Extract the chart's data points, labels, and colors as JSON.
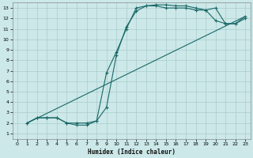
{
  "xlabel": "Humidex (Indice chaleur)",
  "bg_color": "#cce8e8",
  "grid_color": "#aacccc",
  "line_color": "#1a6868",
  "xlim": [
    -0.5,
    23.5
  ],
  "ylim": [
    0.5,
    13.5
  ],
  "xticks": [
    0,
    1,
    2,
    3,
    4,
    5,
    6,
    7,
    8,
    9,
    10,
    11,
    12,
    13,
    14,
    15,
    16,
    17,
    18,
    19,
    20,
    21,
    22,
    23
  ],
  "yticks": [
    1,
    2,
    3,
    4,
    5,
    6,
    7,
    8,
    9,
    10,
    11,
    12,
    13
  ],
  "line1_x": [
    1,
    2,
    3,
    4,
    5,
    6,
    7,
    8,
    9,
    10,
    11,
    12,
    13,
    14,
    15,
    16,
    17,
    18,
    19,
    20,
    21,
    22,
    23
  ],
  "line1_y": [
    2,
    2.5,
    2.5,
    2.5,
    2,
    1.8,
    1.8,
    2.2,
    3.5,
    8.5,
    11.2,
    12.7,
    13.2,
    13.3,
    13.3,
    13.2,
    13.2,
    13.0,
    12.8,
    13.0,
    11.5,
    11.5,
    12.2
  ],
  "line2_x": [
    1,
    2,
    3,
    4,
    5,
    6,
    7,
    8,
    9,
    10,
    11,
    12,
    13,
    14,
    15,
    16,
    17,
    18,
    19,
    20,
    21,
    22,
    23
  ],
  "line2_y": [
    2,
    2.5,
    2.5,
    2.5,
    2,
    2,
    2.0,
    2.2,
    6.8,
    8.8,
    11.0,
    13.0,
    13.2,
    13.2,
    13.0,
    13.0,
    13.0,
    12.8,
    12.8,
    11.8,
    11.5,
    11.5,
    12.0
  ],
  "line3_x": [
    1,
    23
  ],
  "line3_y": [
    2,
    12.2
  ]
}
